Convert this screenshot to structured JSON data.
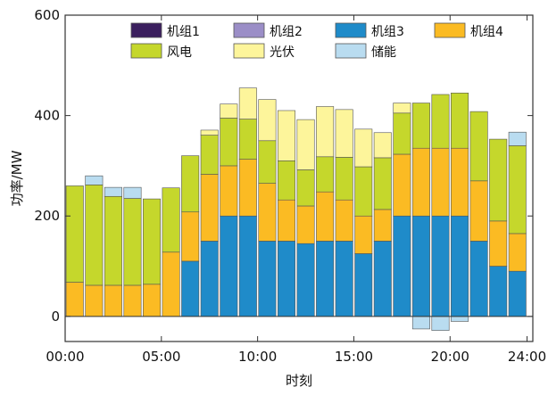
{
  "colors": {
    "机组1": "#3b1f5e",
    "机组2": "#9b8ec7",
    "机组3": "#1f8bc9",
    "机组4": "#fbbb23",
    "风电": "#c5d72c",
    "光伏": "#fdf59b",
    "储能": "#b9dcf0",
    "edge": "#555555",
    "axis": "#333333"
  },
  "chart_data": {
    "type": "bar",
    "stacked": true,
    "xlabel": "时刻",
    "ylabel": "功率/MW",
    "ylim": [
      -50,
      600
    ],
    "yticks": [
      0,
      200,
      400,
      600
    ],
    "xlim": [
      0.5,
      24.8
    ],
    "xticks": [
      {
        "value": 0.5,
        "label": "00:00"
      },
      {
        "value": 5.5,
        "label": "05:00"
      },
      {
        "value": 10.5,
        "label": "10:00"
      },
      {
        "value": 15.5,
        "label": "15:00"
      },
      {
        "value": 20.5,
        "label": "20:00"
      },
      {
        "value": 24.5,
        "label": "24:00"
      }
    ],
    "legend_position": "top",
    "categories": [
      1,
      2,
      3,
      4,
      5,
      6,
      7,
      8,
      9,
      10,
      11,
      12,
      13,
      14,
      15,
      16,
      17,
      18,
      19,
      20,
      21,
      22,
      23,
      24
    ],
    "series": [
      {
        "name": "机组1",
        "values": [
          0,
          0,
          0,
          0,
          0,
          0,
          0,
          0,
          0,
          0,
          0,
          0,
          0,
          0,
          0,
          0,
          0,
          0,
          0,
          0,
          0,
          0,
          0,
          0
        ]
      },
      {
        "name": "机组2",
        "values": [
          0,
          0,
          0,
          0,
          0,
          0,
          0,
          0,
          0,
          0,
          0,
          0,
          0,
          0,
          0,
          0,
          0,
          0,
          0,
          0,
          0,
          0,
          0,
          0
        ]
      },
      {
        "name": "机组3",
        "values": [
          0,
          0,
          0,
          0,
          0,
          0,
          110,
          150,
          200,
          200,
          150,
          150,
          145,
          150,
          150,
          125,
          150,
          200,
          200,
          200,
          200,
          150,
          100,
          90
        ]
      },
      {
        "name": "机组4",
        "values": [
          68,
          62,
          62,
          62,
          64,
          128,
          98,
          133,
          100,
          113,
          115,
          82,
          75,
          98,
          82,
          75,
          63,
          123,
          135,
          135,
          135,
          120,
          90,
          75
        ]
      },
      {
        "name": "风电",
        "values": [
          192,
          200,
          177,
          173,
          170,
          128,
          112,
          78,
          95,
          80,
          85,
          78,
          72,
          70,
          85,
          98,
          103,
          82,
          90,
          107,
          110,
          138,
          163,
          175
        ]
      },
      {
        "name": "光伏",
        "values": [
          0,
          0,
          0,
          0,
          0,
          0,
          0,
          10,
          28,
          62,
          82,
          100,
          100,
          100,
          95,
          75,
          50,
          20,
          0,
          0,
          0,
          0,
          0,
          0
        ]
      },
      {
        "name": "储能",
        "values": [
          0,
          18,
          18,
          22,
          0,
          0,
          0,
          0,
          0,
          0,
          0,
          0,
          0,
          0,
          0,
          0,
          0,
          0,
          0,
          0,
          0,
          0,
          0,
          27
        ]
      },
      {
        "name": "储能-negative",
        "values": [
          0,
          0,
          0,
          0,
          0,
          0,
          0,
          0,
          0,
          0,
          0,
          0,
          0,
          0,
          0,
          0,
          0,
          0,
          -25,
          -28,
          -10,
          0,
          0,
          0
        ]
      }
    ]
  }
}
